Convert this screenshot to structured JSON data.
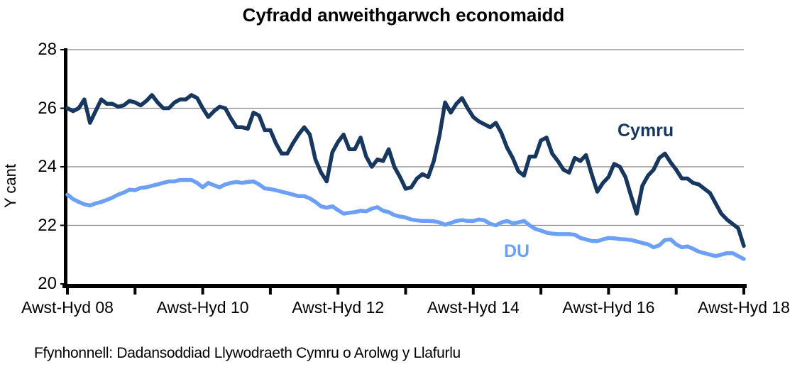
{
  "chart_data": {
    "type": "line",
    "title": "Cyfradd anweithgarwch economaidd",
    "ylabel": "Y cant",
    "xlabel": "",
    "ylim": [
      20,
      28
    ],
    "yticks": [
      20,
      22,
      24,
      26,
      28
    ],
    "grid": "horizontal",
    "legend_position": "labels-on-chart",
    "x_axis": {
      "unit": "rolling 3-month periods, monthly",
      "minor_tick_every_months": 12,
      "label_every_months": 24,
      "labels": [
        "Awst-Hyd 08",
        "Awst-Hyd 10",
        "Awst-Hyd 12",
        "Awst-Hyd 14",
        "Awst-Hyd 16",
        "Awst-Hyd 18"
      ]
    },
    "series": [
      {
        "name": "Cymru",
        "color": "#17375E",
        "values": [
          26.0,
          25.9,
          26.0,
          26.3,
          25.5,
          25.9,
          26.3,
          26.15,
          26.15,
          26.05,
          26.1,
          26.25,
          26.2,
          26.1,
          26.25,
          26.45,
          26.2,
          26.0,
          26.0,
          26.2,
          26.3,
          26.3,
          26.45,
          26.35,
          26.0,
          25.7,
          25.9,
          26.05,
          26.0,
          25.65,
          25.35,
          25.35,
          25.3,
          25.85,
          25.75,
          25.25,
          25.25,
          24.8,
          24.45,
          24.45,
          24.8,
          25.1,
          25.35,
          25.1,
          24.25,
          23.8,
          23.5,
          24.5,
          24.85,
          25.1,
          24.6,
          24.6,
          25.0,
          24.35,
          24.0,
          24.25,
          24.2,
          24.6,
          24.0,
          23.65,
          23.25,
          23.3,
          23.6,
          23.75,
          23.65,
          24.2,
          25.05,
          26.2,
          25.85,
          26.15,
          26.35,
          26.0,
          25.7,
          25.55,
          25.45,
          25.35,
          25.5,
          25.15,
          24.65,
          24.3,
          23.85,
          23.7,
          24.35,
          24.35,
          24.9,
          25.0,
          24.45,
          24.2,
          23.9,
          23.8,
          24.3,
          24.2,
          24.4,
          23.75,
          23.15,
          23.45,
          23.65,
          24.1,
          24.0,
          23.65,
          23.0,
          22.4,
          23.35,
          23.7,
          23.9,
          24.3,
          24.45,
          24.15,
          23.9,
          23.6,
          23.6,
          23.45,
          23.4,
          23.25,
          23.1,
          22.75,
          22.4,
          22.2,
          22.05,
          21.9,
          21.3
        ]
      },
      {
        "name": "DU",
        "color": "#6BA0F6",
        "values": [
          23.05,
          22.9,
          22.8,
          22.72,
          22.68,
          22.75,
          22.8,
          22.87,
          22.95,
          23.05,
          23.12,
          23.22,
          23.2,
          23.28,
          23.3,
          23.35,
          23.4,
          23.45,
          23.5,
          23.5,
          23.55,
          23.55,
          23.55,
          23.45,
          23.3,
          23.45,
          23.37,
          23.3,
          23.4,
          23.45,
          23.48,
          23.45,
          23.48,
          23.5,
          23.4,
          23.26,
          23.24,
          23.2,
          23.15,
          23.1,
          23.05,
          23.0,
          23.0,
          22.92,
          22.8,
          22.65,
          22.6,
          22.65,
          22.52,
          22.4,
          22.43,
          22.45,
          22.5,
          22.48,
          22.57,
          22.62,
          22.5,
          22.45,
          22.35,
          22.3,
          22.27,
          22.2,
          22.17,
          22.15,
          22.15,
          22.14,
          22.1,
          22.02,
          22.08,
          22.15,
          22.18,
          22.15,
          22.15,
          22.2,
          22.17,
          22.05,
          22.0,
          22.1,
          22.15,
          22.07,
          22.1,
          22.15,
          22.0,
          21.88,
          21.82,
          21.75,
          21.72,
          21.7,
          21.7,
          21.7,
          21.68,
          21.57,
          21.52,
          21.47,
          21.46,
          21.52,
          21.57,
          21.56,
          21.53,
          21.52,
          21.5,
          21.45,
          21.4,
          21.35,
          21.25,
          21.32,
          21.5,
          21.52,
          21.35,
          21.25,
          21.28,
          21.2,
          21.1,
          21.05,
          21.0,
          20.95,
          21.0,
          21.05,
          21.05,
          20.95,
          20.85
        ]
      }
    ]
  },
  "source_note": "Ffynhonnell: Dadansoddiad Llywodraeth Cymru o Arolwg y Llafurlu",
  "colors": {
    "axis": "#000000",
    "gridline": "#898989",
    "text": "#000000"
  }
}
